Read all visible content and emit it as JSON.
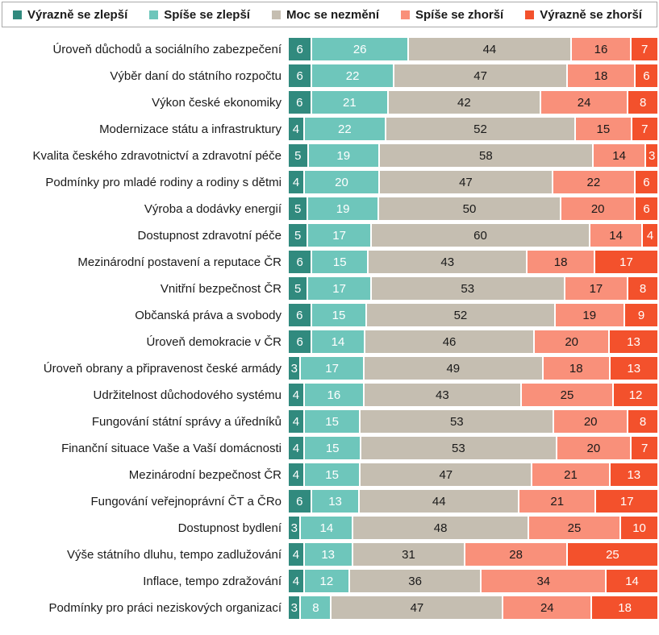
{
  "legend": {
    "items": [
      {
        "label": "Výrazně se zlepší",
        "color": "#318A7E",
        "text_color": "#ffffff"
      },
      {
        "label": "Spíše se zlepší",
        "color": "#6EC6BB",
        "text_color": "#ffffff"
      },
      {
        "label": "Moc se nezmění",
        "color": "#C5BEB1",
        "text_color": "#1a1a1a"
      },
      {
        "label": "Spíše se zhorší",
        "color": "#F9907A",
        "text_color": "#1a1a1a"
      },
      {
        "label": "Výrazně se zhorší",
        "color": "#F3512C",
        "text_color": "#ffffff"
      }
    ]
  },
  "chart_data": {
    "type": "bar",
    "orientation": "horizontal",
    "stacked": true,
    "unit": "%",
    "legend_position": "top",
    "series_names": [
      "Výrazně se zlepší",
      "Spíše se zlepší",
      "Moc se nezmění",
      "Spíše se zhorší",
      "Výrazně se zhorší"
    ],
    "categories": [
      "Úroveň důchodů a sociálního zabezpečení",
      "Výběr daní do státního rozpočtu",
      "Výkon české ekonomiky",
      "Modernizace státu a infrastruktury",
      "Kvalita českého zdravotnictví a zdravotní péče",
      "Podmínky pro mladé rodiny a rodiny s dětmi",
      "Výroba a dodávky energií",
      "Dostupnost zdravotní péče",
      "Mezinárodní postavení a reputace ČR",
      "Vnitřní bezpečnost ČR",
      "Občanská práva a svobody",
      "Úroveň demokracie v ČR",
      "Úroveň obrany a připravenost české armády",
      "Udržitelnost důchodového systému",
      "Fungování státní správy a úředníků",
      "Finanční situace Vaše a Vaší domácnosti",
      "Mezinárodní bezpečnost ČR",
      "Fungování veřejnoprávní ČT a ČRo",
      "Dostupnost bydlení",
      "Výše státního dluhu, tempo zadlužování",
      "Inflace, tempo zdražování",
      "Podmínky pro práci neziskových organizací"
    ],
    "rows": [
      [
        6,
        26,
        44,
        16,
        7
      ],
      [
        6,
        22,
        47,
        18,
        6
      ],
      [
        6,
        21,
        42,
        24,
        8
      ],
      [
        4,
        22,
        52,
        15,
        7
      ],
      [
        5,
        19,
        58,
        14,
        3
      ],
      [
        4,
        20,
        47,
        22,
        6
      ],
      [
        5,
        19,
        50,
        20,
        6
      ],
      [
        5,
        17,
        60,
        14,
        4
      ],
      [
        6,
        15,
        43,
        18,
        17
      ],
      [
        5,
        17,
        53,
        17,
        8
      ],
      [
        6,
        15,
        52,
        19,
        9
      ],
      [
        6,
        14,
        46,
        20,
        13
      ],
      [
        3,
        17,
        49,
        18,
        13
      ],
      [
        4,
        16,
        43,
        25,
        12
      ],
      [
        4,
        15,
        53,
        20,
        8
      ],
      [
        4,
        15,
        53,
        20,
        7
      ],
      [
        4,
        15,
        47,
        21,
        13
      ],
      [
        6,
        13,
        44,
        21,
        17
      ],
      [
        3,
        14,
        48,
        25,
        10
      ],
      [
        4,
        13,
        31,
        28,
        25
      ],
      [
        4,
        12,
        36,
        34,
        14
      ],
      [
        3,
        8,
        47,
        24,
        18
      ]
    ]
  }
}
